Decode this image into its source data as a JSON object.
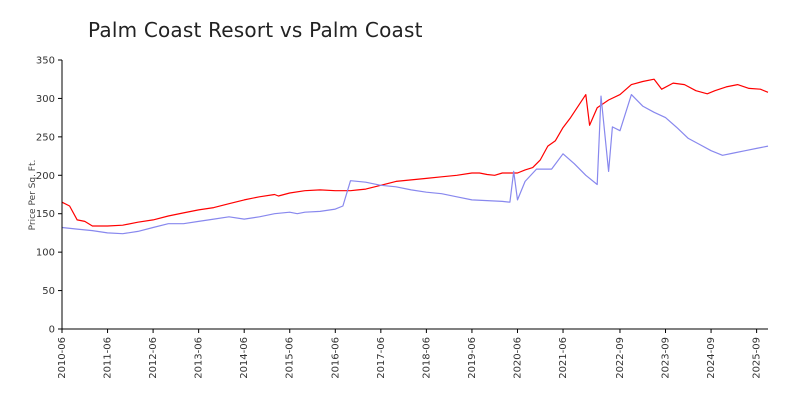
{
  "chart_data": {
    "type": "line",
    "title": "Palm Coast Resort vs Palm Coast",
    "xlabel": "",
    "ylabel": "Price Per Sq. Ft.",
    "ylim": [
      0,
      350
    ],
    "yticks": [
      0,
      50,
      100,
      150,
      200,
      250,
      300,
      350
    ],
    "xlim": [
      "2010-06",
      "2025-12"
    ],
    "xticks": [
      "2010-06",
      "2011-06",
      "2012-06",
      "2013-06",
      "2014-06",
      "2015-06",
      "2016-06",
      "2017-06",
      "2018-06",
      "2019-06",
      "2020-06",
      "2021-06",
      "2022-09",
      "2023-09",
      "2024-09",
      "2025-09"
    ],
    "grid": false,
    "legend": "none",
    "series": [
      {
        "color": "#ff0000",
        "points": [
          [
            "2010-06",
            165
          ],
          [
            "2010-08",
            160
          ],
          [
            "2010-10",
            142
          ],
          [
            "2010-12",
            140
          ],
          [
            "2011-02",
            134
          ],
          [
            "2011-06",
            134
          ],
          [
            "2011-10",
            135
          ],
          [
            "2012-02",
            139
          ],
          [
            "2012-06",
            142
          ],
          [
            "2012-10",
            147
          ],
          [
            "2013-02",
            151
          ],
          [
            "2013-06",
            155
          ],
          [
            "2013-10",
            158
          ],
          [
            "2014-02",
            163
          ],
          [
            "2014-06",
            168
          ],
          [
            "2014-10",
            172
          ],
          [
            "2015-02",
            175
          ],
          [
            "2015-03",
            173
          ],
          [
            "2015-06",
            177
          ],
          [
            "2015-10",
            180
          ],
          [
            "2016-02",
            181
          ],
          [
            "2016-06",
            180
          ],
          [
            "2016-10",
            180
          ],
          [
            "2016-12",
            181
          ],
          [
            "2017-02",
            182
          ],
          [
            "2017-06",
            187
          ],
          [
            "2017-10",
            192
          ],
          [
            "2018-02",
            194
          ],
          [
            "2018-06",
            196
          ],
          [
            "2018-10",
            198
          ],
          [
            "2019-02",
            200
          ],
          [
            "2019-06",
            203
          ],
          [
            "2019-08",
            203
          ],
          [
            "2019-10",
            201
          ],
          [
            "2019-12",
            200
          ],
          [
            "2020-02",
            203
          ],
          [
            "2020-06",
            203
          ],
          [
            "2020-08",
            207
          ],
          [
            "2020-10",
            210
          ],
          [
            "2020-12",
            220
          ],
          [
            "2021-02",
            238
          ],
          [
            "2021-04",
            245
          ],
          [
            "2021-06",
            262
          ],
          [
            "2021-08",
            275
          ],
          [
            "2021-10",
            290
          ],
          [
            "2021-12",
            305
          ],
          [
            "2022-01",
            265
          ],
          [
            "2022-03",
            288
          ],
          [
            "2022-06",
            298
          ],
          [
            "2022-09",
            305
          ],
          [
            "2022-12",
            318
          ],
          [
            "2023-03",
            322
          ],
          [
            "2023-06",
            325
          ],
          [
            "2023-08",
            312
          ],
          [
            "2023-11",
            320
          ],
          [
            "2024-02",
            318
          ],
          [
            "2024-05",
            310
          ],
          [
            "2024-08",
            306
          ],
          [
            "2024-10",
            310
          ],
          [
            "2025-01",
            315
          ],
          [
            "2025-04",
            318
          ],
          [
            "2025-07",
            313
          ],
          [
            "2025-10",
            312
          ],
          [
            "2025-12",
            308
          ]
        ]
      },
      {
        "color": "#8888ee",
        "points": [
          [
            "2010-06",
            132
          ],
          [
            "2010-10",
            130
          ],
          [
            "2011-02",
            128
          ],
          [
            "2011-06",
            125
          ],
          [
            "2011-10",
            124
          ],
          [
            "2012-02",
            127
          ],
          [
            "2012-06",
            132
          ],
          [
            "2012-10",
            137
          ],
          [
            "2013-02",
            137
          ],
          [
            "2013-06",
            140
          ],
          [
            "2013-10",
            143
          ],
          [
            "2014-02",
            146
          ],
          [
            "2014-06",
            143
          ],
          [
            "2014-10",
            146
          ],
          [
            "2015-02",
            150
          ],
          [
            "2015-06",
            152
          ],
          [
            "2015-08",
            150
          ],
          [
            "2015-10",
            152
          ],
          [
            "2016-02",
            153
          ],
          [
            "2016-06",
            156
          ],
          [
            "2016-08",
            160
          ],
          [
            "2016-10",
            193
          ],
          [
            "2017-02",
            191
          ],
          [
            "2017-06",
            187
          ],
          [
            "2017-10",
            185
          ],
          [
            "2018-02",
            181
          ],
          [
            "2018-06",
            178
          ],
          [
            "2018-10",
            176
          ],
          [
            "2019-02",
            172
          ],
          [
            "2019-06",
            168
          ],
          [
            "2019-10",
            167
          ],
          [
            "2020-02",
            166
          ],
          [
            "2020-04",
            165
          ],
          [
            "2020-05",
            205
          ],
          [
            "2020-06",
            168
          ],
          [
            "2020-08",
            192
          ],
          [
            "2020-11",
            208
          ],
          [
            "2021-03",
            208
          ],
          [
            "2021-06",
            228
          ],
          [
            "2021-09",
            215
          ],
          [
            "2021-12",
            200
          ],
          [
            "2022-03",
            188
          ],
          [
            "2022-04",
            303
          ],
          [
            "2022-06",
            205
          ],
          [
            "2022-07",
            263
          ],
          [
            "2022-09",
            258
          ],
          [
            "2022-12",
            305
          ],
          [
            "2023-03",
            290
          ],
          [
            "2023-06",
            282
          ],
          [
            "2023-09",
            275
          ],
          [
            "2023-12",
            262
          ],
          [
            "2024-03",
            248
          ],
          [
            "2024-06",
            240
          ],
          [
            "2024-09",
            232
          ],
          [
            "2024-12",
            226
          ],
          [
            "2025-03",
            229
          ],
          [
            "2025-06",
            232
          ],
          [
            "2025-09",
            235
          ],
          [
            "2025-12",
            238
          ]
        ]
      }
    ]
  }
}
